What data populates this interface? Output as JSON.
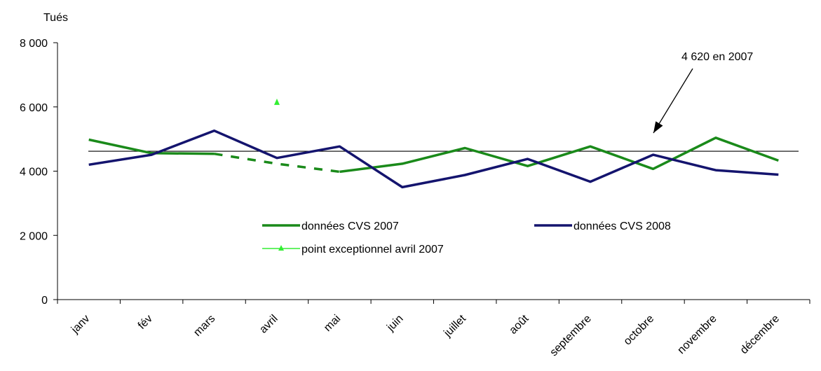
{
  "chart_data": {
    "type": "line",
    "ylabel": "Tués",
    "ylim": [
      0,
      8000
    ],
    "yticks": [
      0,
      2000,
      4000,
      6000,
      8000
    ],
    "ytick_labels": [
      "0",
      "2 000",
      "4 000",
      "6 000",
      "8 000"
    ],
    "categories": [
      "janv",
      "fév",
      "mars",
      "avril",
      "mai",
      "juin",
      "juillet",
      "août",
      "septembre",
      "octobre",
      "novembre",
      "décembre"
    ],
    "series": [
      {
        "name": "données CVS 2007",
        "color": "#1a8a1a",
        "values": [
          4980,
          4560,
          4540,
          4230,
          3980,
          4230,
          4720,
          4160,
          4770,
          4070,
          5040,
          4330
        ],
        "dashed_segment": {
          "from": "mars",
          "to": "mai"
        }
      },
      {
        "name": "données CVS 2008",
        "color": "#14146e",
        "values": [
          4200,
          4510,
          5260,
          4410,
          4770,
          3500,
          3880,
          4380,
          3670,
          4510,
          4030,
          3890
        ]
      },
      {
        "name": "point exceptionnel avril 2007",
        "color": "#33ee33",
        "marker": "triangle",
        "points": [
          {
            "x": "avril",
            "y": 6150
          }
        ]
      }
    ],
    "reference_line": {
      "value": 4620,
      "color": "#000000"
    },
    "annotation": {
      "text": "4 620  en 2007",
      "points_to": "reference_line"
    },
    "legend_placement": "center"
  }
}
